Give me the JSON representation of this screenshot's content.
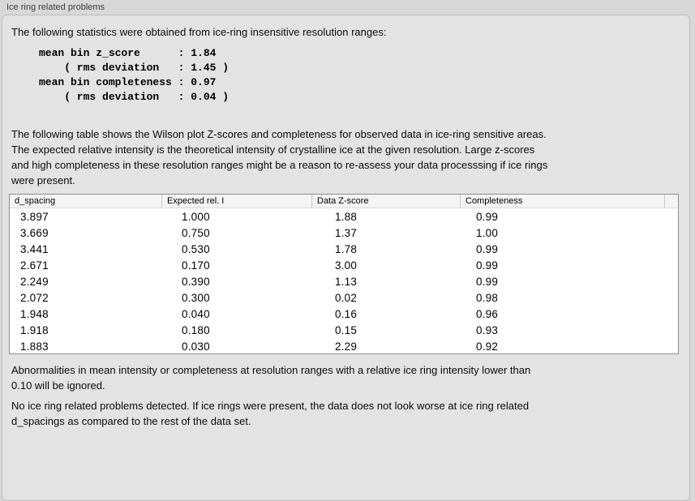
{
  "panel": {
    "title": "Ice ring related problems"
  },
  "intro": {
    "text": "The following statistics were obtained from ice-ring insensitive resolution ranges:"
  },
  "stats": {
    "lines": [
      "mean bin z_score      : 1.84",
      "    ( rms deviation   : 1.45 )",
      "mean bin completeness : 0.97",
      "    ( rms deviation   : 0.04 )"
    ],
    "mean_bin_z_score": "1.84",
    "z_score_rms_deviation": "1.45",
    "mean_bin_completeness": "0.97",
    "completeness_rms_deviation": "0.04"
  },
  "description": {
    "lines": [
      "The following table shows the Wilson plot Z-scores and completeness for observed data in ice-ring sensitive areas.",
      "The expected relative intensity is the theoretical intensity of crystalline ice at the given resolution. Large z-scores",
      "and high completeness in these resolution ranges might be a reason to re-assess your data processsing if ice rings",
      "were present."
    ]
  },
  "table": {
    "columns": [
      "d_spacing",
      "Expected rel. I",
      "Data Z-score",
      "Completeness"
    ],
    "rows": [
      [
        "3.897",
        "1.000",
        "1.88",
        "0.99"
      ],
      [
        "3.669",
        "0.750",
        "1.37",
        "1.00"
      ],
      [
        "3.441",
        "0.530",
        "1.78",
        "0.99"
      ],
      [
        "2.671",
        "0.170",
        "3.00",
        "0.99"
      ],
      [
        "2.249",
        "0.390",
        "1.13",
        "0.99"
      ],
      [
        "2.072",
        "0.300",
        "0.02",
        "0.98"
      ],
      [
        "1.948",
        "0.040",
        "0.16",
        "0.96"
      ],
      [
        "1.918",
        "0.180",
        "0.15",
        "0.93"
      ],
      [
        "1.883",
        "0.030",
        "2.29",
        "0.92"
      ]
    ]
  },
  "notes": {
    "ignore_lines": [
      "Abnormalities in mean intensity or completeness at resolution ranges with a relative ice ring intensity lower than",
      "0.10 will be ignored."
    ],
    "conclusion_lines": [
      "No ice ring related problems detected. If ice rings were present, the data does not look worse at ice ring related",
      "d_spacings as compared to the rest of the data set."
    ]
  }
}
